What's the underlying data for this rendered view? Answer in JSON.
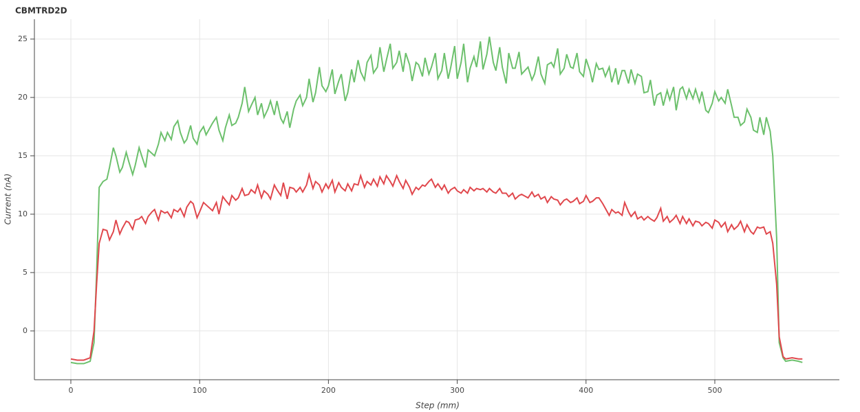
{
  "chart_data": {
    "type": "line",
    "title": "CBMTRD2D",
    "x_label": "Step (mm)",
    "y_label": "Current (nA)",
    "x": [
      0,
      5,
      10,
      15,
      18,
      20,
      22,
      25,
      28,
      30,
      33,
      35,
      38,
      40,
      43,
      45,
      48,
      50,
      53,
      55,
      58,
      60,
      63,
      65,
      68,
      70,
      73,
      75,
      78,
      80,
      83,
      85,
      88,
      90,
      93,
      95,
      98,
      100,
      103,
      105,
      110,
      113,
      115,
      118,
      120,
      123,
      125,
      128,
      130,
      133,
      135,
      138,
      140,
      143,
      145,
      148,
      150,
      153,
      155,
      158,
      160,
      163,
      165,
      168,
      170,
      173,
      175,
      178,
      180,
      183,
      185,
      188,
      190,
      193,
      195,
      198,
      200,
      203,
      205,
      208,
      210,
      213,
      215,
      218,
      220,
      223,
      225,
      228,
      230,
      233,
      235,
      238,
      240,
      243,
      245,
      248,
      250,
      253,
      255,
      258,
      260,
      263,
      265,
      268,
      270,
      273,
      275,
      278,
      280,
      283,
      285,
      288,
      290,
      293,
      295,
      298,
      300,
      303,
      305,
      308,
      310,
      313,
      315,
      318,
      320,
      323,
      325,
      328,
      330,
      333,
      335,
      338,
      340,
      343,
      345,
      348,
      350,
      355,
      358,
      360,
      363,
      365,
      368,
      370,
      373,
      375,
      378,
      380,
      383,
      385,
      388,
      390,
      393,
      395,
      398,
      400,
      403,
      405,
      408,
      410,
      413,
      415,
      418,
      420,
      423,
      425,
      428,
      430,
      433,
      435,
      438,
      440,
      443,
      445,
      448,
      450,
      453,
      455,
      458,
      460,
      463,
      465,
      468,
      470,
      473,
      475,
      478,
      480,
      483,
      485,
      488,
      490,
      493,
      495,
      498,
      500,
      503,
      505,
      508,
      510,
      513,
      515,
      518,
      520,
      523,
      525,
      528,
      530,
      533,
      535,
      538,
      540,
      543,
      545,
      548,
      550,
      553,
      555,
      560,
      565,
      568
    ],
    "series": [
      {
        "color": "#6cc06c",
        "values": [
          -2.7,
          -2.8,
          -2.8,
          -2.6,
          -1,
          5,
          12.3,
          12.8,
          13,
          14,
          15.7,
          15,
          13.6,
          14,
          15.3,
          14.5,
          13.4,
          14.2,
          15.7,
          15,
          14,
          15.5,
          15.2,
          15,
          16,
          17,
          16.3,
          17,
          16.4,
          17.5,
          18,
          17,
          16.1,
          16.4,
          17.6,
          16.5,
          16,
          17,
          17.5,
          16.8,
          17.8,
          18.3,
          17.2,
          16.3,
          17.4,
          18.5,
          17.6,
          17.8,
          18.3,
          19.5,
          20.9,
          18.8,
          19.3,
          20,
          18.5,
          19.5,
          18.3,
          19,
          19.7,
          18.5,
          19.7,
          18.2,
          17.8,
          18.8,
          17.4,
          19,
          19.7,
          20.2,
          19.3,
          20,
          21.6,
          19.6,
          20.4,
          22.6,
          21,
          20.5,
          21,
          22.4,
          20.3,
          21.4,
          22,
          19.7,
          20.4,
          22.4,
          21.3,
          23.2,
          22.2,
          21.5,
          23,
          23.6,
          22.1,
          22.6,
          24.3,
          22.2,
          23.2,
          24.6,
          22.5,
          23,
          24,
          22.2,
          23.8,
          22.8,
          21.4,
          23,
          22.8,
          21.8,
          23.4,
          22,
          22.6,
          23.8,
          21.6,
          22.3,
          23.8,
          21.6,
          22.6,
          24.4,
          21.6,
          23,
          24.6,
          21.3,
          22.5,
          23.5,
          22.6,
          24.8,
          22.4,
          23.7,
          25.2,
          23,
          22.3,
          24.3,
          22.6,
          21.2,
          23.8,
          22.5,
          22.5,
          23.9,
          22,
          22.6,
          21.5,
          22,
          23.5,
          22,
          21.2,
          22.8,
          23,
          22.6,
          24.2,
          22,
          22.5,
          23.7,
          22.6,
          22.5,
          23.8,
          22.2,
          21.8,
          23.3,
          22.3,
          21.3,
          22.9,
          22.4,
          22.5,
          21.8,
          22.6,
          21.3,
          22.5,
          21.1,
          22.3,
          22.3,
          21.2,
          22.4,
          21.2,
          22,
          21.8,
          20.4,
          20.5,
          21.5,
          19.3,
          20.2,
          20.4,
          19.3,
          20.6,
          19.8,
          20.9,
          18.9,
          20.7,
          20.9,
          19.9,
          20.7,
          19.9,
          20.7,
          19.6,
          20.5,
          18.9,
          18.7,
          19.5,
          20.5,
          19.7,
          20,
          19.5,
          20.7,
          19.3,
          18.3,
          18.3,
          17.6,
          17.9,
          19,
          18.3,
          17.2,
          17,
          18.3,
          16.8,
          18.3,
          17.1,
          15,
          8,
          -1,
          -2.3,
          -2.6,
          -2.5,
          -2.6,
          -2.7
        ]
      },
      {
        "color": "#e0474c",
        "values": [
          -2.4,
          -2.5,
          -2.5,
          -2.3,
          0,
          4,
          7.5,
          8.7,
          8.6,
          7.8,
          8.5,
          9.5,
          8.3,
          8.8,
          9.4,
          9.3,
          8.7,
          9.5,
          9.6,
          9.8,
          9.2,
          9.8,
          10.2,
          10.4,
          9.5,
          10.3,
          10.1,
          10.2,
          9.7,
          10.4,
          10.2,
          10.5,
          9.8,
          10.6,
          11.1,
          10.9,
          9.7,
          10.2,
          11,
          10.8,
          10.3,
          11,
          10,
          11.5,
          11.2,
          10.8,
          11.6,
          11.2,
          11.4,
          12.2,
          11.6,
          11.7,
          12.1,
          11.8,
          12.5,
          11.4,
          12,
          11.7,
          11.3,
          12.5,
          12.1,
          11.6,
          12.7,
          11.3,
          12.3,
          12.2,
          11.9,
          12.3,
          11.9,
          12.5,
          13.4,
          12.2,
          12.8,
          12.5,
          11.9,
          12.6,
          12.2,
          12.9,
          11.9,
          12.7,
          12.3,
          12,
          12.6,
          12,
          12.6,
          12.5,
          13.3,
          12.3,
          12.8,
          12.5,
          13,
          12.4,
          13.2,
          12.6,
          13.3,
          12.8,
          12.4,
          13.3,
          12.8,
          12.2,
          12.9,
          12.3,
          11.7,
          12.3,
          12.1,
          12.5,
          12.4,
          12.8,
          13,
          12.3,
          12.6,
          12.1,
          12.5,
          11.8,
          12.1,
          12.3,
          12,
          11.8,
          12.1,
          11.8,
          12.3,
          12,
          12.2,
          12.1,
          12.2,
          11.9,
          12.2,
          11.9,
          11.8,
          12.2,
          11.8,
          11.8,
          11.5,
          11.8,
          11.3,
          11.6,
          11.7,
          11.4,
          11.9,
          11.5,
          11.7,
          11.3,
          11.5,
          11,
          11.5,
          11.3,
          11.2,
          10.8,
          11.2,
          11.3,
          11,
          11.1,
          11.4,
          10.9,
          11.1,
          11.6,
          11,
          11.1,
          11.4,
          11.4,
          10.9,
          10.5,
          9.9,
          10.4,
          10.1,
          10.2,
          9.9,
          11,
          10.2,
          9.8,
          10.2,
          9.6,
          9.8,
          9.5,
          9.8,
          9.6,
          9.4,
          9.7,
          10.5,
          9.4,
          9.8,
          9.3,
          9.6,
          9.9,
          9.2,
          9.8,
          9.2,
          9.6,
          9,
          9.4,
          9.3,
          9,
          9.3,
          9.2,
          8.8,
          9.5,
          9.3,
          8.9,
          9.3,
          8.5,
          9.1,
          8.7,
          9,
          9.4,
          8.5,
          9.1,
          8.5,
          8.3,
          8.9,
          8.8,
          8.9,
          8.3,
          8.5,
          7.5,
          4,
          -0.5,
          -2.2,
          -2.4,
          -2.3,
          -2.4,
          -2.4
        ]
      }
    ],
    "xlim": [
      -28.3,
      596.7
    ],
    "ylim": [
      -4.18,
      26.7
    ],
    "xticks": [
      0,
      100,
      200,
      300,
      400,
      500
    ],
    "yticks": [
      0,
      5,
      10,
      15,
      20,
      25
    ],
    "grid": true
  }
}
